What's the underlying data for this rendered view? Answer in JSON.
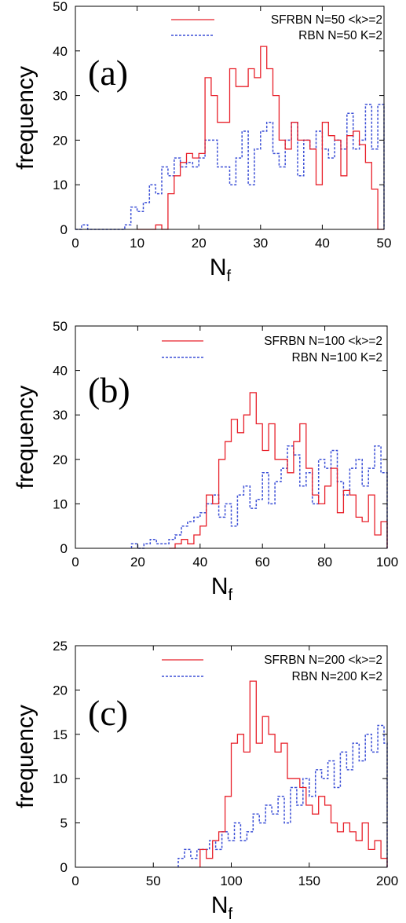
{
  "colors": {
    "sfrbn": "#e8202a",
    "rbn": "#3b4fd6",
    "axis": "#000000"
  },
  "chart_data": [
    {
      "type": "line",
      "step": true,
      "panel_label": "(a)",
      "xlabel": "N",
      "xlabel_sub": "f",
      "ylabel": "frequency",
      "xlim": [
        0,
        50
      ],
      "ylim": [
        0,
        50
      ],
      "x_ticks": [
        "0",
        "10",
        "20",
        "30",
        "40",
        "50"
      ],
      "x_tick_values": [
        0,
        10,
        20,
        30,
        40,
        50
      ],
      "y_ticks": [
        "0",
        "10",
        "20",
        "30",
        "40",
        "50"
      ],
      "y_tick_values": [
        0,
        10,
        20,
        30,
        40,
        50
      ],
      "legend_position": "top-right",
      "series": [
        {
          "name": "SFRBN N=50 <k>=2",
          "style": "solid",
          "x": [
            10,
            11,
            12,
            13,
            14,
            15,
            16,
            17,
            18,
            19,
            20,
            21,
            22,
            23,
            24,
            25,
            26,
            27,
            28,
            29,
            30,
            31,
            32,
            33,
            34,
            35,
            36,
            37,
            38,
            39,
            40,
            41,
            42,
            43,
            44,
            45,
            46,
            47,
            48,
            49
          ],
          "values": [
            0,
            0,
            0,
            1,
            0,
            8,
            12,
            15,
            17,
            16,
            17,
            34,
            30,
            24,
            24,
            36,
            32,
            32,
            36,
            34,
            41,
            36,
            30,
            20,
            18,
            24,
            20,
            20,
            18,
            10,
            24,
            21,
            20,
            12,
            21,
            22,
            19,
            15,
            9,
            0
          ]
        },
        {
          "name": "RBN N=50 K=2",
          "style": "dashed",
          "x": [
            0,
            1,
            2,
            3,
            4,
            5,
            6,
            7,
            8,
            9,
            10,
            11,
            12,
            13,
            14,
            15,
            16,
            17,
            18,
            19,
            20,
            21,
            22,
            23,
            24,
            25,
            26,
            27,
            28,
            29,
            30,
            31,
            32,
            33,
            34,
            35,
            36,
            37,
            38,
            39,
            40,
            41,
            42,
            43,
            44,
            45,
            46,
            47,
            48,
            49
          ],
          "values": [
            0,
            1,
            0,
            0,
            0,
            0,
            0,
            0,
            1,
            5,
            4,
            6,
            10,
            8,
            14,
            12,
            16,
            14,
            15,
            14,
            16,
            20,
            20,
            14,
            14,
            10,
            16,
            22,
            10,
            18,
            22,
            24,
            17,
            14,
            20,
            24,
            12,
            20,
            18,
            22,
            18,
            16,
            20,
            18,
            26,
            18,
            20,
            28,
            18,
            28
          ]
        }
      ]
    },
    {
      "type": "line",
      "step": true,
      "panel_label": "(b)",
      "xlabel": "N",
      "xlabel_sub": "f",
      "ylabel": "frequency",
      "xlim": [
        0,
        100
      ],
      "ylim": [
        0,
        50
      ],
      "x_ticks": [
        "0",
        "20",
        "40",
        "60",
        "80",
        "100"
      ],
      "x_tick_values": [
        0,
        20,
        40,
        60,
        80,
        100
      ],
      "y_ticks": [
        "0",
        "10",
        "20",
        "30",
        "40",
        "50"
      ],
      "y_tick_values": [
        0,
        10,
        20,
        30,
        40,
        50
      ],
      "legend_position": "top-right",
      "series": [
        {
          "name": "SFRBN N=100 <k>=2",
          "style": "solid",
          "x": [
            30,
            32,
            34,
            36,
            38,
            40,
            42,
            44,
            46,
            48,
            50,
            52,
            54,
            56,
            58,
            60,
            62,
            64,
            66,
            68,
            70,
            72,
            74,
            76,
            78,
            80,
            82,
            84,
            86,
            88,
            90,
            92,
            94,
            96,
            98
          ],
          "values": [
            0,
            1,
            2,
            1,
            3,
            5,
            12,
            10,
            20,
            24,
            29,
            26,
            30,
            35,
            28,
            22,
            28,
            20,
            20,
            17,
            24,
            28,
            18,
            12,
            10,
            14,
            18,
            8,
            13,
            12,
            7,
            6,
            12,
            3,
            6
          ]
        },
        {
          "name": "RBN N=100 K=2",
          "style": "dashed",
          "x": [
            18,
            20,
            22,
            24,
            26,
            28,
            30,
            32,
            34,
            36,
            38,
            40,
            42,
            44,
            46,
            48,
            50,
            52,
            54,
            56,
            58,
            60,
            62,
            64,
            66,
            68,
            70,
            72,
            74,
            76,
            78,
            80,
            82,
            84,
            86,
            88,
            90,
            92,
            94,
            96,
            98
          ],
          "values": [
            1,
            0,
            1,
            2,
            1,
            1,
            2,
            3,
            5,
            6,
            7,
            8,
            10,
            12,
            7,
            10,
            5,
            12,
            14,
            9,
            11,
            17,
            10,
            15,
            18,
            23,
            21,
            14,
            17,
            10,
            20,
            18,
            22,
            15,
            12,
            18,
            20,
            14,
            18,
            23,
            17
          ]
        }
      ]
    },
    {
      "type": "line",
      "step": true,
      "panel_label": "(c)",
      "xlabel": "N",
      "xlabel_sub": "f",
      "ylabel": "frequency",
      "xlim": [
        0,
        200
      ],
      "ylim": [
        0,
        25
      ],
      "x_ticks": [
        "0",
        "50",
        "100",
        "150",
        "200"
      ],
      "x_tick_values": [
        0,
        50,
        100,
        150,
        200
      ],
      "y_ticks": [
        "0",
        "5",
        "10",
        "15",
        "20",
        "25"
      ],
      "y_tick_values": [
        0,
        5,
        10,
        15,
        20,
        25
      ],
      "legend_position": "top-right",
      "series": [
        {
          "name": "SFRBN N=200 <k>=2",
          "style": "solid",
          "x": [
            80,
            84,
            88,
            92,
            96,
            100,
            104,
            108,
            112,
            116,
            120,
            124,
            128,
            132,
            136,
            140,
            144,
            148,
            152,
            156,
            160,
            164,
            168,
            172,
            176,
            180,
            184,
            188,
            192,
            196
          ],
          "values": [
            2,
            1,
            3,
            4,
            8,
            14,
            15,
            13,
            21,
            14,
            17,
            15,
            13,
            14,
            10,
            10,
            9,
            7,
            6,
            8,
            7,
            5,
            4,
            5,
            4,
            3,
            5,
            2,
            3,
            1
          ]
        },
        {
          "name": "RBN N=200 K=2",
          "style": "dashed",
          "x": [
            66,
            70,
            74,
            78,
            82,
            86,
            90,
            94,
            98,
            102,
            106,
            110,
            114,
            118,
            122,
            126,
            130,
            134,
            138,
            142,
            146,
            150,
            154,
            158,
            162,
            166,
            170,
            174,
            178,
            182,
            186,
            190,
            194,
            198
          ],
          "values": [
            1,
            2,
            1,
            2,
            2,
            3,
            2,
            4,
            3,
            5,
            3,
            4,
            6,
            5,
            7,
            6,
            8,
            5,
            9,
            7,
            10,
            8,
            11,
            10,
            12,
            9,
            13,
            11,
            14,
            12,
            15,
            13,
            16,
            14
          ]
        }
      ]
    }
  ]
}
